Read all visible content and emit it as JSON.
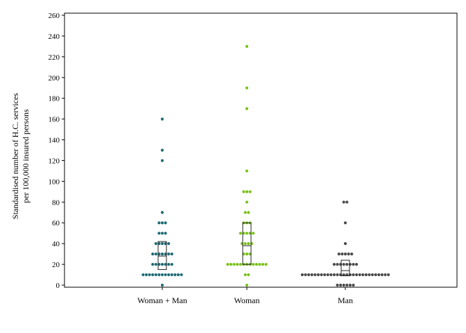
{
  "chart_data": {
    "type": "scatter",
    "title": "",
    "xlabel": "",
    "ylabel_lines": [
      "Standardised number of H.C. services",
      "per 100,000 insured persons"
    ],
    "ylim": [
      0,
      260
    ],
    "yticks": [
      0,
      20,
      40,
      60,
      80,
      100,
      120,
      140,
      160,
      180,
      200,
      220,
      240,
      260
    ],
    "categories": [
      "Woman + Man",
      "Woman",
      "Man"
    ],
    "grid": false,
    "legend": "none",
    "series": [
      {
        "category": "Woman + Man",
        "color": "#1f6b75",
        "values": [
          0,
          10,
          10,
          10,
          10,
          10,
          10,
          10,
          10,
          10,
          10,
          10,
          10,
          10,
          20,
          20,
          20,
          20,
          20,
          20,
          20,
          30,
          30,
          30,
          30,
          30,
          30,
          30,
          40,
          40,
          40,
          40,
          40,
          50,
          50,
          50,
          60,
          60,
          60,
          70,
          120,
          130,
          160
        ],
        "box": {
          "q1": 15,
          "median": 28,
          "q3": 42
        }
      },
      {
        "category": "Woman",
        "color": "#7ac11a",
        "values": [
          0,
          10,
          10,
          20,
          20,
          20,
          20,
          20,
          20,
          20,
          20,
          20,
          20,
          20,
          20,
          20,
          30,
          30,
          30,
          40,
          40,
          40,
          40,
          50,
          50,
          50,
          50,
          50,
          60,
          60,
          60,
          70,
          70,
          80,
          90,
          90,
          90,
          110,
          170,
          190,
          230
        ],
        "box": {
          "q1": 20,
          "median": 38,
          "q3": 60
        }
      },
      {
        "category": "Man",
        "color": "#4a4a4a",
        "values": [
          0,
          0,
          0,
          0,
          0,
          0,
          10,
          10,
          10,
          10,
          10,
          10,
          10,
          10,
          10,
          10,
          10,
          10,
          10,
          10,
          10,
          10,
          10,
          10,
          10,
          10,
          10,
          10,
          10,
          10,
          10,
          10,
          10,
          10,
          20,
          20,
          20,
          20,
          20,
          20,
          20,
          20,
          30,
          30,
          30,
          30,
          30,
          40,
          60,
          80,
          80
        ],
        "box": {
          "q1": 9,
          "median": 14,
          "q3": 24
        }
      }
    ]
  }
}
